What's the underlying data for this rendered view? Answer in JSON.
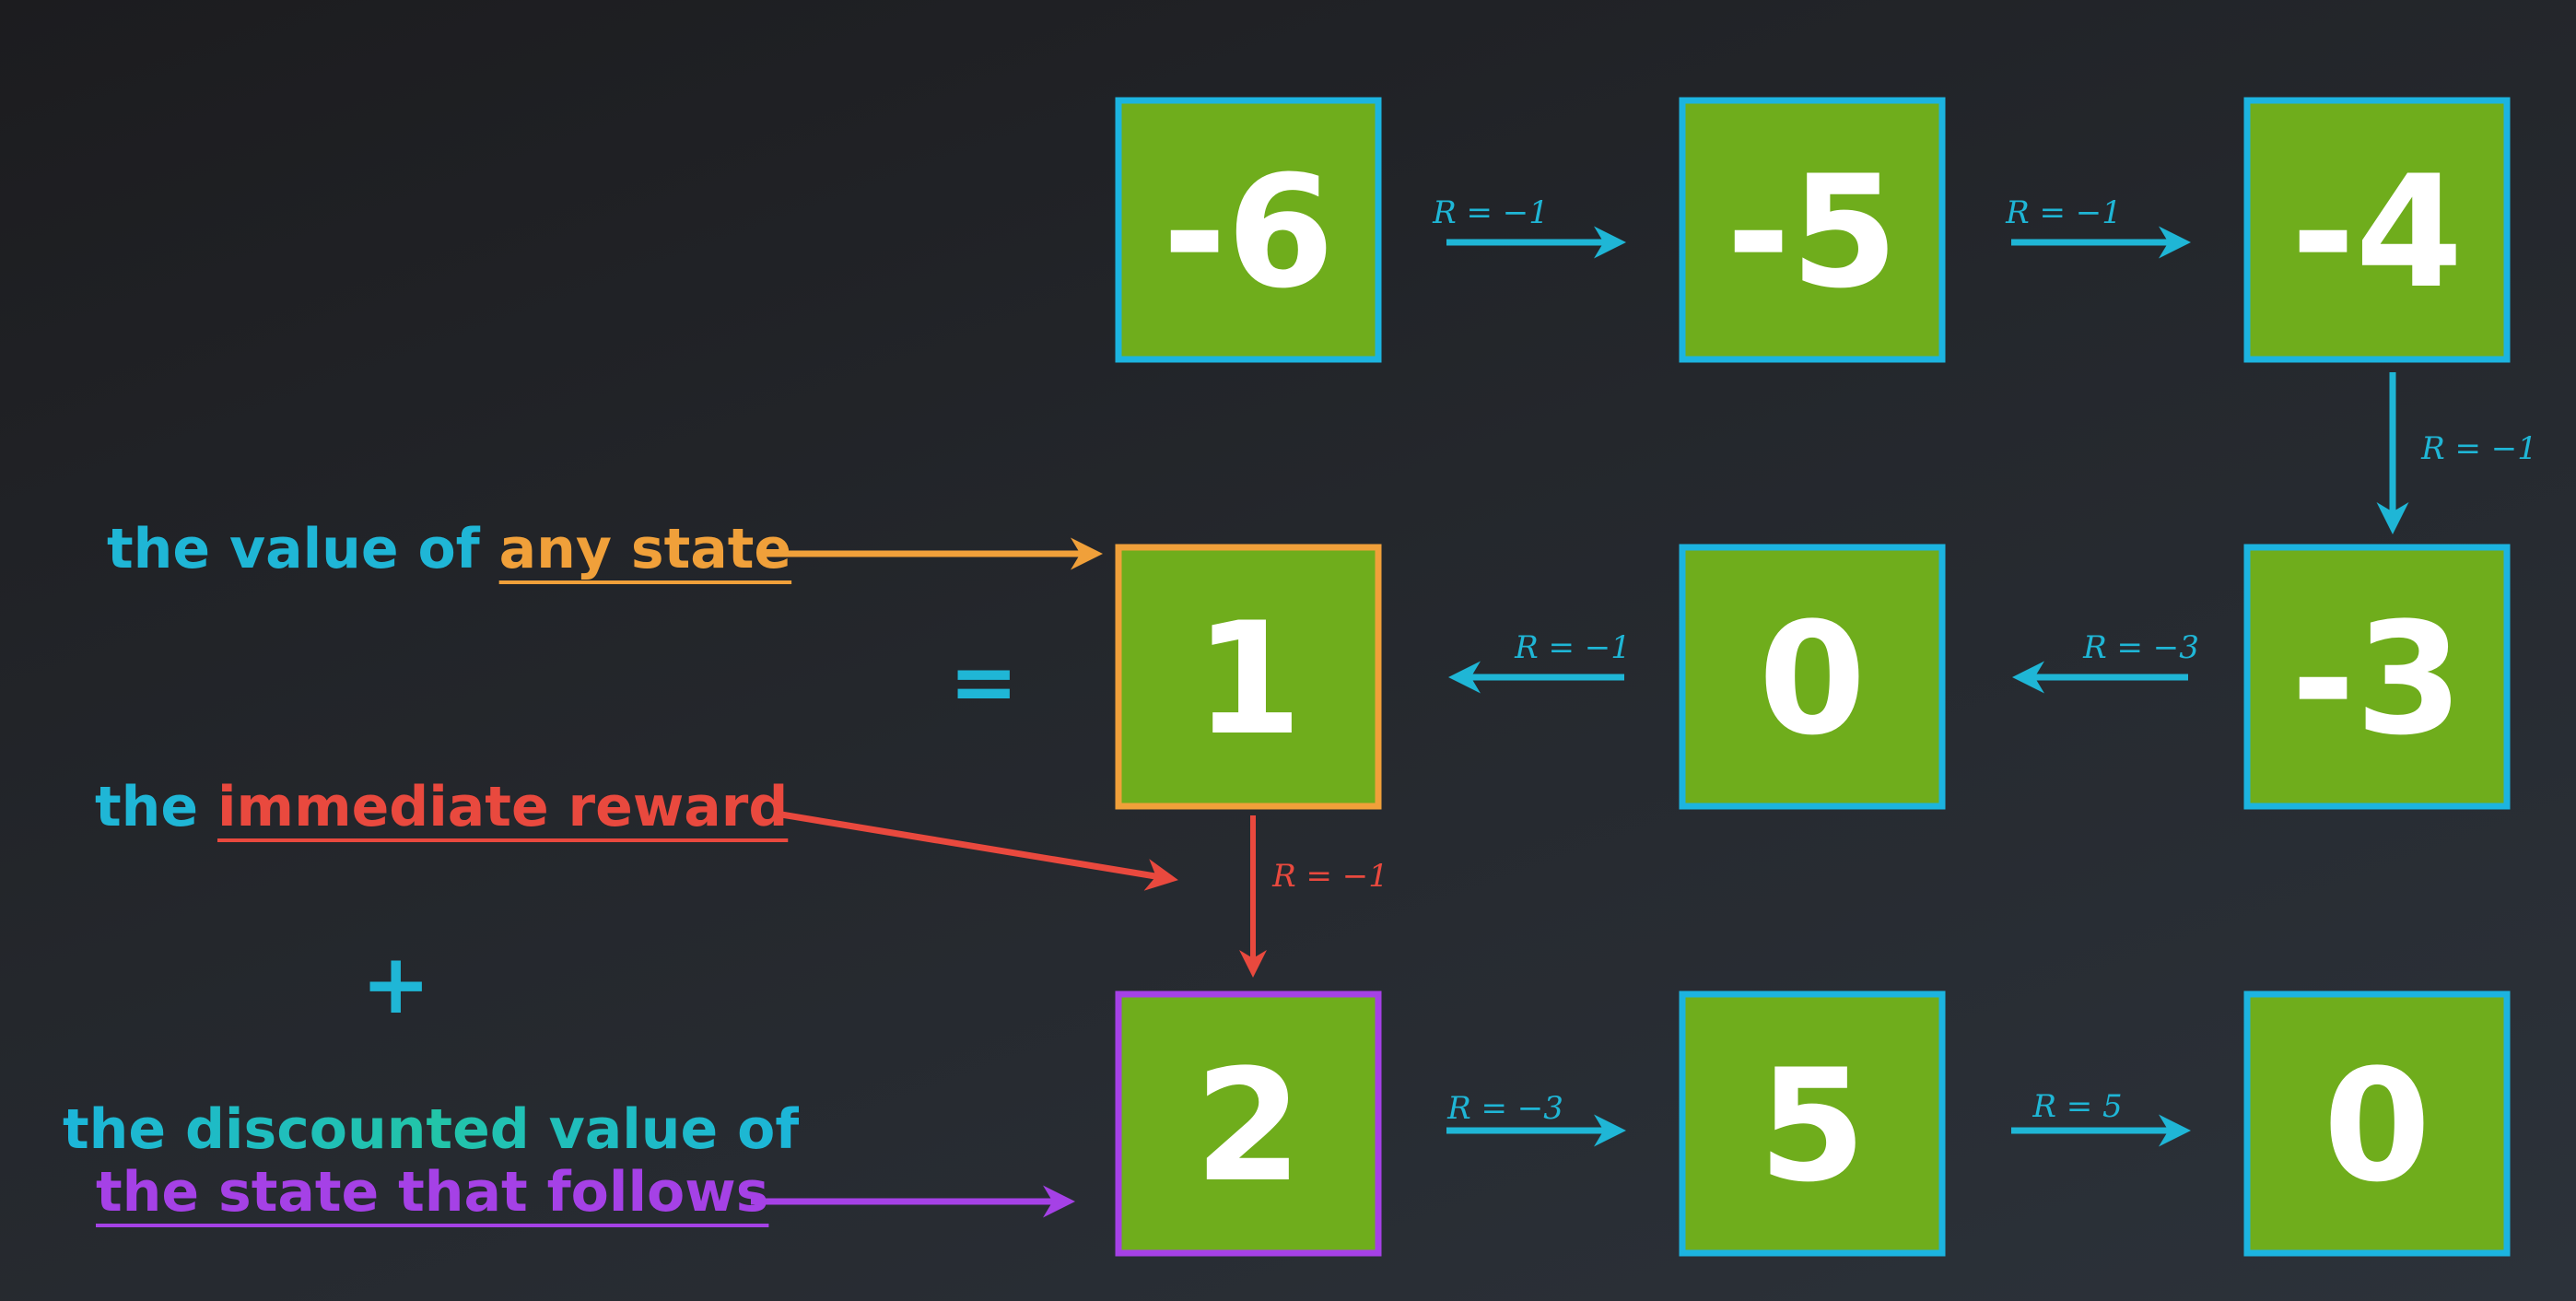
{
  "colors": {
    "cell_fill": "#6fad1c",
    "cyan": "#1fb6d6",
    "orange": "#f0a03a",
    "red": "#e9493e",
    "purple": "#a541e6"
  },
  "cells": [
    {
      "id": "r0c0",
      "value": "-6",
      "border": "#1cb4e0"
    },
    {
      "id": "r0c1",
      "value": "-5",
      "border": "#1cb4e0"
    },
    {
      "id": "r0c2",
      "value": "-4",
      "border": "#1cb4e0"
    },
    {
      "id": "r1c0",
      "value": "1",
      "border": "#f0a03a"
    },
    {
      "id": "r1c1",
      "value": "0",
      "border": "#1cb4e0"
    },
    {
      "id": "r1c2",
      "value": "-3",
      "border": "#1cb4e0"
    },
    {
      "id": "r2c0",
      "value": "2",
      "border": "#a541e6"
    },
    {
      "id": "r2c1",
      "value": "5",
      "border": "#1cb4e0"
    },
    {
      "id": "r2c2",
      "value": "0",
      "border": "#1cb4e0"
    }
  ],
  "transitions": [
    {
      "id": "t-6-to-5",
      "label": "R = −1",
      "color": "#1fb6d6"
    },
    {
      "id": "t-5-to-4",
      "label": "R = −1",
      "color": "#1fb6d6"
    },
    {
      "id": "t-4-to-3",
      "label": "R = −1",
      "color": "#1fb6d6"
    },
    {
      "id": "t-3-to-0",
      "label": "R = −3",
      "color": "#1fb6d6"
    },
    {
      "id": "t-0-to-1",
      "label": "R = −1",
      "color": "#1fb6d6"
    },
    {
      "id": "t-1-to-2",
      "label": "R = −1",
      "color": "#e9493e"
    },
    {
      "id": "t-2-to-5",
      "label": "R = −3",
      "color": "#1fb6d6"
    },
    {
      "id": "t-5-to-0",
      "label": "R = 5",
      "color": "#1fb6d6"
    }
  ],
  "labels": {
    "value_prefix": "the value of ",
    "value_highlight": "any state",
    "equals": "=",
    "reward_prefix": "the ",
    "reward_highlight": "immediate reward",
    "plus": "+",
    "discounted_line1": "the discounted value of",
    "discounted_line2": "the state that follows"
  }
}
